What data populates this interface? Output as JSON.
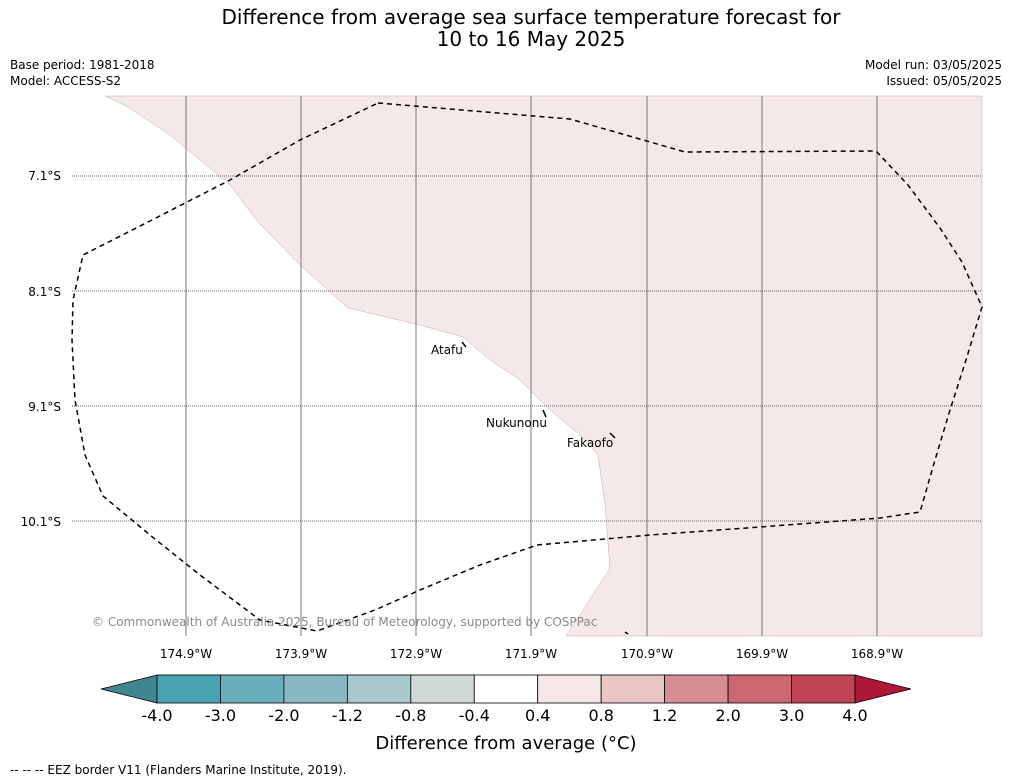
{
  "title_line1": "Difference from average sea surface temperature forecast for",
  "title_line2": "10 to 16 May 2025",
  "meta": {
    "base_period": "Base period: 1981-2018",
    "model": "Model: ACCESS-S2",
    "model_run": "Model run: 03/05/2025",
    "issued": "Issued: 05/05/2025"
  },
  "latitude_labels": [
    "7.1°S",
    "8.1°S",
    "9.1°S",
    "10.1°S"
  ],
  "longitude_labels": [
    "174.9°W",
    "173.9°W",
    "172.9°W",
    "171.9°W",
    "170.9°W",
    "169.9°W",
    "168.9°W"
  ],
  "places": [
    {
      "name": "Atafu"
    },
    {
      "name": "Nukunonu"
    },
    {
      "name": "Fakaofo"
    }
  ],
  "copyright": "© Commonwealth of Australia 2025, Bureau of Meteorology, supported by COSPPac",
  "colorbar": {
    "title": "Difference from average (°C)",
    "tick_labels": [
      "-4.0",
      "-3.0",
      "-2.0",
      "-1.2",
      "-0.8",
      "-0.4",
      "0.4",
      "0.8",
      "1.2",
      "2.0",
      "3.0",
      "4.0"
    ],
    "under_color": "#3e8690",
    "over_color": "#ad1836",
    "bin_colors": [
      "#48a2b2",
      "#6aaebc",
      "#8ab8c2",
      "#a8c8cd",
      "#d0d8d8",
      "#ffffff",
      "#f6e8e8",
      "#e9c6c4",
      "#d68d93",
      "#cc6670",
      "#c04454"
    ]
  },
  "map_colors": {
    "anomaly_0_4_to_0_8": "#f5e8e8",
    "neutral": "#ffffff"
  },
  "footer": "--  --  -- EEZ border V11 (Flanders Marine Institute, 2019)."
}
